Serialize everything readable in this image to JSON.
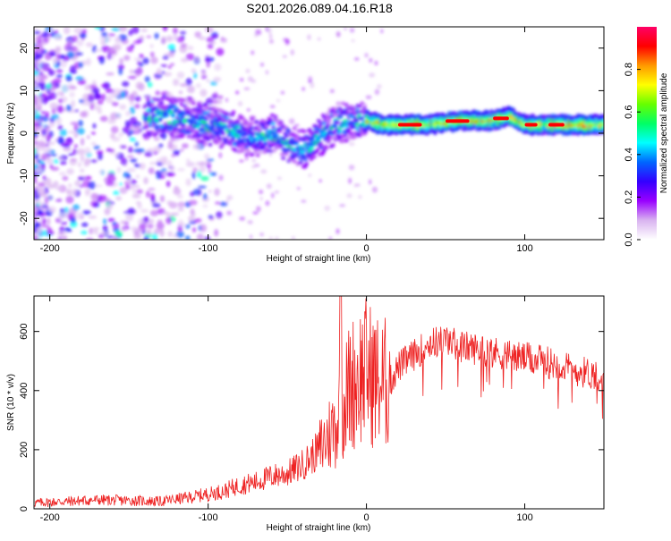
{
  "title": "S201.2026.089.04.16.R18",
  "chart_data": [
    {
      "type": "heatmap",
      "name": "spectrogram",
      "xlabel": "Height of straight line (km)",
      "ylabel": "Frequency (Hz)",
      "xlim": [
        -210,
        150
      ],
      "ylim": [
        -25,
        25
      ],
      "xticks": [
        -200,
        -100,
        0,
        100
      ],
      "yticks": [
        -20,
        -10,
        0,
        10,
        20
      ],
      "colorbar": {
        "label": "Normalized spectral amplitude",
        "range": [
          0.0,
          1.0
        ],
        "ticks": [
          0.0,
          0.2,
          0.4,
          0.6,
          0.8
        ],
        "colormap": [
          "#ffffff",
          "#d9b3f0",
          "#9900ff",
          "#3300ff",
          "#0066ff",
          "#00ffff",
          "#00ff66",
          "#66ff00",
          "#ffff00",
          "#ff9900",
          "#ff0000",
          "#ff0066"
        ]
      },
      "ridge": {
        "description_points_x": [
          -130,
          -110,
          -100,
          -90,
          -80,
          -70,
          -60,
          -50,
          -40,
          -30,
          -20,
          -10,
          0,
          10,
          20,
          40,
          60,
          80,
          90,
          100,
          120,
          150
        ],
        "description_points_freq": [
          4,
          3,
          2,
          1,
          0,
          -1,
          0,
          -2,
          -4,
          -1,
          2,
          3,
          3,
          2,
          2,
          2,
          3,
          3,
          4,
          2,
          2,
          2
        ]
      }
    },
    {
      "type": "line",
      "name": "snr",
      "xlabel": "Height of straight line (km)",
      "ylabel": "SNR (10 * v/v)",
      "xlim": [
        -210,
        150
      ],
      "ylim": [
        0,
        720
      ],
      "xticks": [
        -200,
        -100,
        0,
        100
      ],
      "yticks": [
        0,
        200,
        400,
        600
      ],
      "color": "#ee2222",
      "series": [
        {
          "name": "SNR",
          "x": [
            -210,
            -190,
            -170,
            -150,
            -130,
            -110,
            -100,
            -90,
            -80,
            -70,
            -60,
            -50,
            -40,
            -30,
            -20,
            -15,
            -10,
            -5,
            0,
            5,
            10,
            15,
            20,
            30,
            40,
            50,
            60,
            70,
            80,
            90,
            100,
            110,
            120,
            130,
            140,
            150
          ],
          "y": [
            20,
            25,
            30,
            28,
            25,
            40,
            50,
            60,
            80,
            90,
            110,
            120,
            150,
            200,
            280,
            350,
            420,
            450,
            470,
            440,
            420,
            430,
            480,
            520,
            560,
            570,
            550,
            540,
            530,
            520,
            510,
            500,
            490,
            470,
            460,
            450
          ]
        }
      ]
    }
  ]
}
